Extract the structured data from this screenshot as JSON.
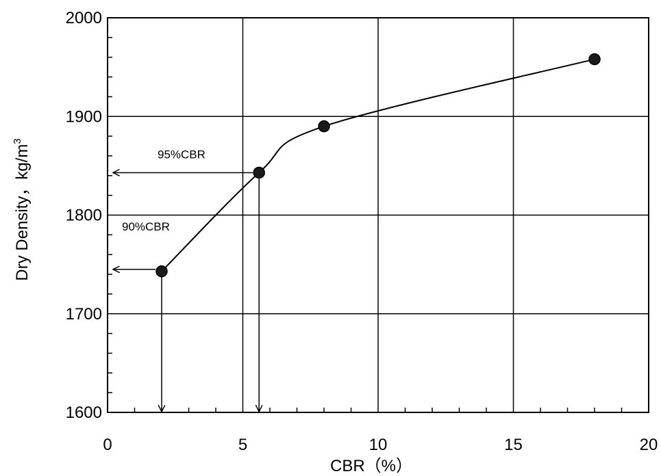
{
  "chart_data": {
    "type": "line",
    "xlabel": "CBR（%）",
    "ylabel": "Dry Density，kg/m",
    "ylabel_sup": "3",
    "xlim": [
      0,
      20
    ],
    "ylim": [
      1600,
      2000
    ],
    "x_ticks": [
      0,
      5,
      10,
      15,
      20
    ],
    "y_ticks": [
      1600,
      1700,
      1800,
      1900,
      2000
    ],
    "grid": true,
    "series": [
      {
        "x": [
          2,
          5.6,
          8,
          18
        ],
        "y": [
          1743,
          1843,
          1890,
          1958
        ]
      }
    ],
    "annotations": [
      {
        "text": "95%CBR",
        "y": 1843,
        "x_at_curve": 5.6
      },
      {
        "text": "90%CBR",
        "y": 1745,
        "x_at_curve": 2.0
      }
    ]
  }
}
